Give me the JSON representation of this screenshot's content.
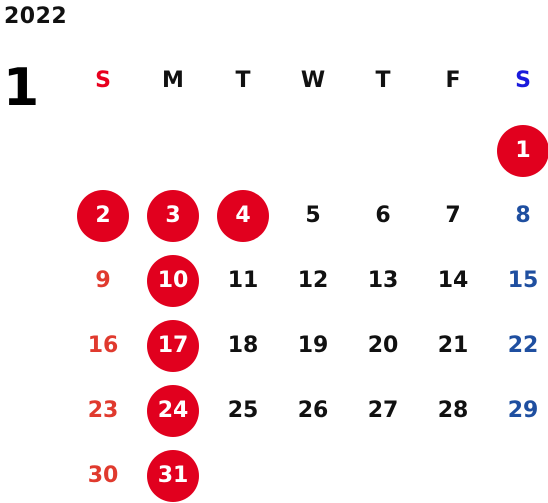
{
  "year": "2022",
  "month": "1",
  "weekdays": [
    {
      "label": "S",
      "color": "#e8001e"
    },
    {
      "label": "M",
      "color": "#111111"
    },
    {
      "label": "T",
      "color": "#111111"
    },
    {
      "label": "W",
      "color": "#111111"
    },
    {
      "label": "T",
      "color": "#111111"
    },
    {
      "label": "F",
      "color": "#111111"
    },
    {
      "label": "S",
      "color": "#1a1adc"
    }
  ],
  "first_weekday_index": 6,
  "days": [
    {
      "n": "1",
      "holiday": true
    },
    {
      "n": "2",
      "holiday": true
    },
    {
      "n": "3",
      "holiday": true
    },
    {
      "n": "4",
      "holiday": true
    },
    {
      "n": "5",
      "holiday": false
    },
    {
      "n": "6",
      "holiday": false
    },
    {
      "n": "7",
      "holiday": false
    },
    {
      "n": "8",
      "holiday": false
    },
    {
      "n": "9",
      "holiday": false
    },
    {
      "n": "10",
      "holiday": true
    },
    {
      "n": "11",
      "holiday": false
    },
    {
      "n": "12",
      "holiday": false
    },
    {
      "n": "13",
      "holiday": false
    },
    {
      "n": "14",
      "holiday": false
    },
    {
      "n": "15",
      "holiday": false
    },
    {
      "n": "16",
      "holiday": false
    },
    {
      "n": "17",
      "holiday": true
    },
    {
      "n": "18",
      "holiday": false
    },
    {
      "n": "19",
      "holiday": false
    },
    {
      "n": "20",
      "holiday": false
    },
    {
      "n": "21",
      "holiday": false
    },
    {
      "n": "22",
      "holiday": false
    },
    {
      "n": "23",
      "holiday": false
    },
    {
      "n": "24",
      "holiday": true
    },
    {
      "n": "25",
      "holiday": false
    },
    {
      "n": "26",
      "holiday": false
    },
    {
      "n": "27",
      "holiday": false
    },
    {
      "n": "28",
      "holiday": false
    },
    {
      "n": "29",
      "holiday": false
    },
    {
      "n": "30",
      "holiday": false
    },
    {
      "n": "31",
      "holiday": true
    }
  ],
  "colors": {
    "holiday_circle": "#e1001e",
    "sunday_text": "#e03a2e",
    "saturday_text": "#1f4fa0",
    "weekday_text": "#111111"
  }
}
